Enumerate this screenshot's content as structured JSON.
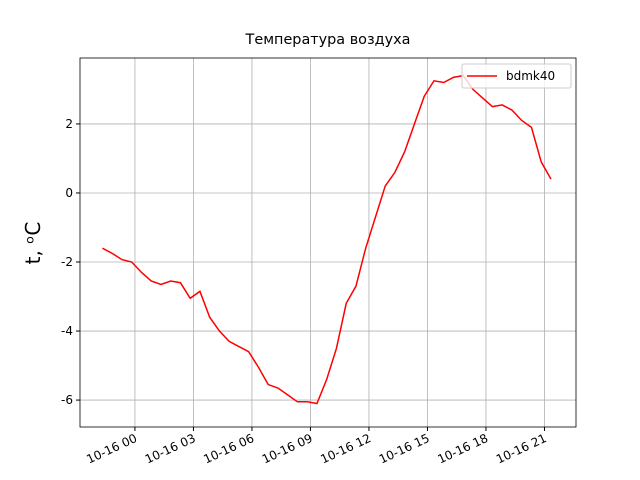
{
  "chart_data": {
    "type": "line",
    "title": "Температура воздуха",
    "ylabel": "t, ᵒC",
    "x": [
      "10-15 22:20",
      "10-15 22:50",
      "10-15 23:20",
      "10-15 23:50",
      "10-16 00:20",
      "10-16 00:50",
      "10-16 01:20",
      "10-16 01:50",
      "10-16 02:20",
      "10-16 02:50",
      "10-16 03:20",
      "10-16 03:50",
      "10-16 04:20",
      "10-16 04:50",
      "10-16 05:20",
      "10-16 05:50",
      "10-16 06:20",
      "10-16 06:50",
      "10-16 07:20",
      "10-16 07:50",
      "10-16 08:20",
      "10-16 08:50",
      "10-16 09:20",
      "10-16 09:50",
      "10-16 10:20",
      "10-16 10:50",
      "10-16 11:20",
      "10-16 11:50",
      "10-16 12:20",
      "10-16 12:50",
      "10-16 13:20",
      "10-16 13:50",
      "10-16 14:20",
      "10-16 14:50",
      "10-16 15:20",
      "10-16 15:50",
      "10-16 16:20",
      "10-16 16:50",
      "10-16 17:20",
      "10-16 17:50",
      "10-16 18:20",
      "10-16 18:50",
      "10-16 19:20",
      "10-16 19:50",
      "10-16 20:20",
      "10-16 20:50",
      "10-16 21:20"
    ],
    "series": [
      {
        "name": "bdmk40",
        "color": "#ff0000",
        "values": [
          -1.6,
          -1.75,
          -1.93,
          -2.0,
          -2.3,
          -2.55,
          -2.65,
          -2.55,
          -2.6,
          -3.05,
          -2.85,
          -3.6,
          -4.0,
          -4.3,
          -4.45,
          -4.6,
          -5.05,
          -5.55,
          -5.65,
          -5.85,
          -6.05,
          -6.05,
          -6.1,
          -5.4,
          -4.5,
          -3.2,
          -2.7,
          -1.6,
          -0.7,
          0.2,
          0.6,
          1.2,
          2.0,
          2.8,
          3.25,
          3.2,
          3.35,
          3.4,
          3.0,
          2.75,
          2.5,
          2.55,
          2.4,
          2.1,
          1.9,
          0.9,
          0.4
        ]
      }
    ],
    "xlim": [
      "10-15 21:11",
      "10-16 22:37"
    ],
    "xticks": [
      "10-16 00",
      "10-16 03",
      "10-16 06",
      "10-16 09",
      "10-16 12",
      "10-16 15",
      "10-16 18",
      "10-16 21"
    ],
    "ylim": [
      -6.78,
      3.91
    ],
    "yticks": [
      -6,
      -4,
      -2,
      0,
      2
    ],
    "grid": true,
    "legend": "upper right"
  }
}
